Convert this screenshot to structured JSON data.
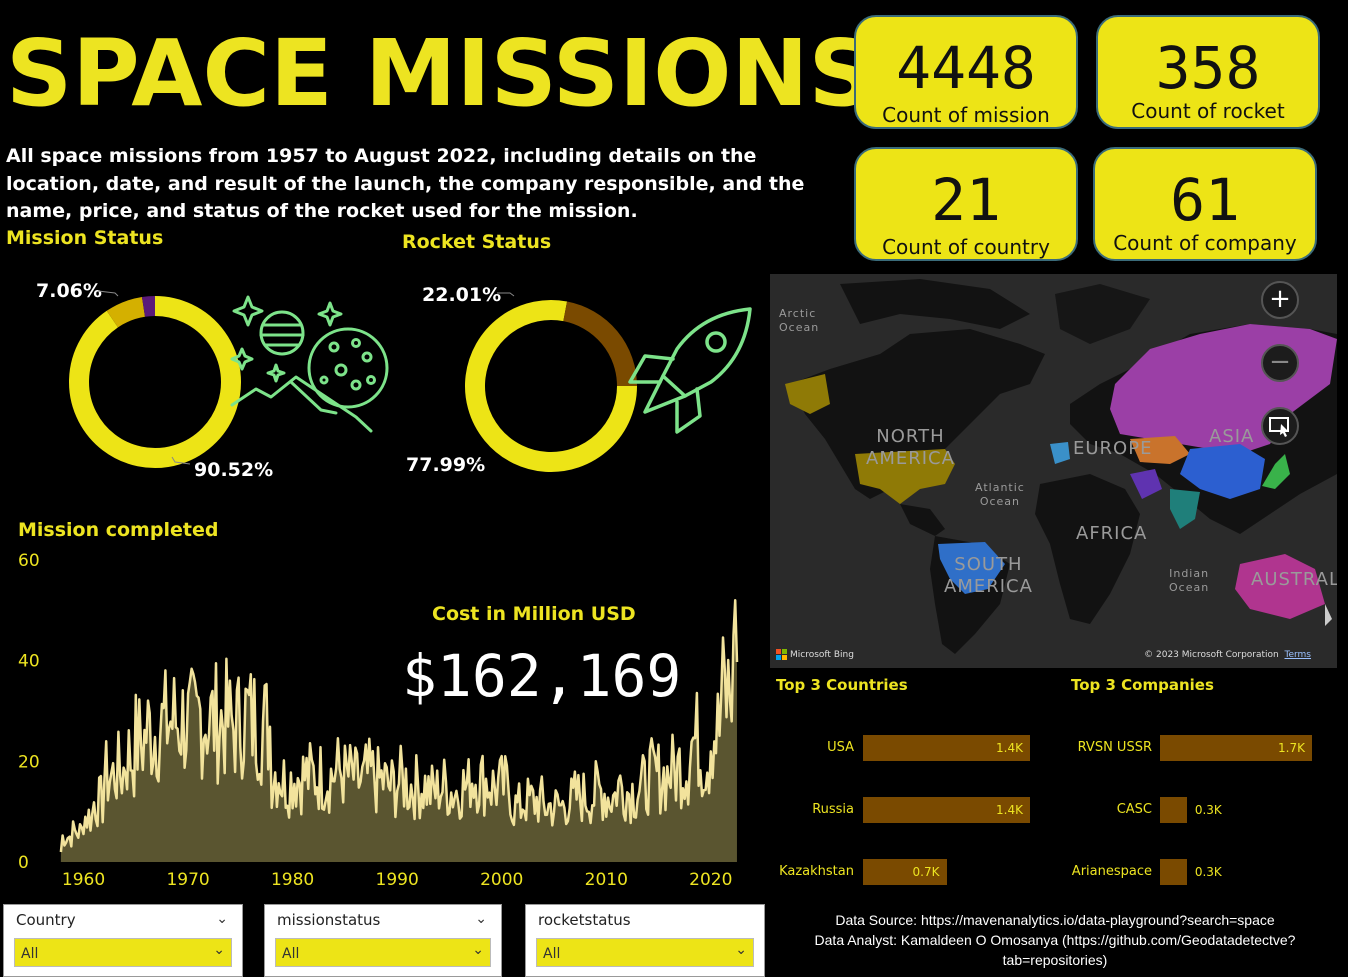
{
  "title": "SPACE MISSIONS",
  "description": "All space missions from 1957 to August 2022, including details on the location, date, and result of the launch, the company responsible, and the name, price, and status of the rocket used for the mission.",
  "kpis": [
    {
      "value": "4448",
      "label": "Count of mission"
    },
    {
      "value": "358",
      "label": "Count of rocket"
    },
    {
      "value": "21",
      "label": "Count of country"
    },
    {
      "value": "61",
      "label": "Count of company"
    }
  ],
  "mission_status": {
    "title": "Mission Status",
    "small_pct": "7.06%",
    "large_pct": "90.52%",
    "icon": "planets-neon-icon"
  },
  "rocket_status": {
    "title": "Rocket Status",
    "small_pct": "22.01%",
    "large_pct": "77.99%",
    "icon": "rocket-neon-icon"
  },
  "colors": {
    "accent": "#ede421",
    "bar": "#7a4a00",
    "area": "#5a5530",
    "line": "#f2e39c"
  },
  "cost": {
    "title": "Cost in Million USD",
    "value": "$162,169"
  },
  "map": {
    "labels": {
      "arctic": "Arctic\nOcean",
      "north_america": "NORTH\nAMERICA",
      "europe": "EUROPE",
      "asia": "ASIA",
      "atlantic": "Atlantic\nOcean",
      "africa": "AFRICA",
      "south_america": "SOUTH\nAMERICA",
      "indian": "Indian\nOcean",
      "australia": "AUSTRAL"
    },
    "bing": "Microsoft Bing",
    "copyright": "© 2023 Microsoft Corporation",
    "terms": "Terms",
    "zoom_in": "+",
    "zoom_out": "−"
  },
  "top_countries": {
    "title": "Top 3 Countries",
    "items": [
      {
        "label": "USA",
        "value": 1.4,
        "text": "1.4K"
      },
      {
        "label": "Russia",
        "value": 1.4,
        "text": "1.4K"
      },
      {
        "label": "Kazakhstan",
        "value": 0.7,
        "text": "0.7K"
      }
    ]
  },
  "top_companies": {
    "title": "Top 3 Companies",
    "items": [
      {
        "label": "RVSN USSR",
        "value": 1.7,
        "text": "1.7K"
      },
      {
        "label": "CASC",
        "value": 0.3,
        "text": "0.3K"
      },
      {
        "label": "Arianespace",
        "value": 0.3,
        "text": "0.3K"
      }
    ]
  },
  "slicers": [
    {
      "label": "Country",
      "value": "All"
    },
    {
      "label": "missionstatus",
      "value": "All"
    },
    {
      "label": "rocketstatus",
      "value": "All"
    }
  ],
  "footer": {
    "line1": "Data Source: https://mavenanalytics.io/data-playground?search=space",
    "line2": "Data Analyst: Kamaldeen O Omosanya (https://github.com/Geodatadetectve?",
    "line3": "tab=repositories)"
  },
  "chart_data": [
    {
      "type": "area",
      "title": "Mission completed",
      "ylim": [
        0,
        60
      ],
      "yticks": [
        "0",
        "20",
        "40",
        "60"
      ],
      "xticks": [
        "1960",
        "1970",
        "1980",
        "1990",
        "2000",
        "2010",
        "2020"
      ],
      "x_range": [
        "1957-10",
        "2022-08"
      ],
      "series": [
        {
          "values_yearly": [
            {
              "x": 1957,
              "y": 2
            },
            {
              "x": 1958,
              "y": 5
            },
            {
              "x": 1959,
              "y": 6
            },
            {
              "x": 1960,
              "y": 9
            },
            {
              "x": 1961,
              "y": 12
            },
            {
              "x": 1962,
              "y": 17
            },
            {
              "x": 1963,
              "y": 18
            },
            {
              "x": 1964,
              "y": 21
            },
            {
              "x": 1965,
              "y": 24
            },
            {
              "x": 1966,
              "y": 26
            },
            {
              "x": 1967,
              "y": 27
            },
            {
              "x": 1968,
              "y": 28
            },
            {
              "x": 1969,
              "y": 28
            },
            {
              "x": 1970,
              "y": 27
            },
            {
              "x": 1971,
              "y": 29
            },
            {
              "x": 1972,
              "y": 28
            },
            {
              "x": 1973,
              "y": 28
            },
            {
              "x": 1974,
              "y": 27
            },
            {
              "x": 1975,
              "y": 29
            },
            {
              "x": 1976,
              "y": 28
            },
            {
              "x": 1977,
              "y": 27
            },
            {
              "x": 1978,
              "y": 18
            },
            {
              "x": 1979,
              "y": 16
            },
            {
              "x": 1980,
              "y": 17
            },
            {
              "x": 1981,
              "y": 17
            },
            {
              "x": 1982,
              "y": 17
            },
            {
              "x": 1983,
              "y": 17
            },
            {
              "x": 1984,
              "y": 18
            },
            {
              "x": 1985,
              "y": 17
            },
            {
              "x": 1986,
              "y": 16
            },
            {
              "x": 1987,
              "y": 17
            },
            {
              "x": 1988,
              "y": 16
            },
            {
              "x": 1989,
              "y": 15
            },
            {
              "x": 1990,
              "y": 16
            },
            {
              "x": 1991,
              "y": 15
            },
            {
              "x": 1992,
              "y": 15
            },
            {
              "x": 1993,
              "y": 14
            },
            {
              "x": 1994,
              "y": 15
            },
            {
              "x": 1995,
              "y": 14
            },
            {
              "x": 1996,
              "y": 15
            },
            {
              "x": 1997,
              "y": 17
            },
            {
              "x": 1998,
              "y": 16
            },
            {
              "x": 1999,
              "y": 15
            },
            {
              "x": 2000,
              "y": 15
            },
            {
              "x": 2001,
              "y": 11
            },
            {
              "x": 2002,
              "y": 12
            },
            {
              "x": 2003,
              "y": 12
            },
            {
              "x": 2004,
              "y": 11
            },
            {
              "x": 2005,
              "y": 11
            },
            {
              "x": 2006,
              "y": 12
            },
            {
              "x": 2007,
              "y": 13
            },
            {
              "x": 2008,
              "y": 13
            },
            {
              "x": 2009,
              "y": 14
            },
            {
              "x": 2010,
              "y": 13
            },
            {
              "x": 2011,
              "y": 15
            },
            {
              "x": 2012,
              "y": 14
            },
            {
              "x": 2013,
              "y": 15
            },
            {
              "x": 2014,
              "y": 17
            },
            {
              "x": 2015,
              "y": 17
            },
            {
              "x": 2016,
              "y": 18
            },
            {
              "x": 2017,
              "y": 19
            },
            {
              "x": 2018,
              "y": 24
            },
            {
              "x": 2019,
              "y": 21
            },
            {
              "x": 2020,
              "y": 26
            },
            {
              "x": 2021,
              "y": 33
            },
            {
              "x": 2022,
              "y": 36
            }
          ]
        }
      ]
    },
    {
      "type": "pie",
      "title": "Mission Status",
      "values": [
        90.52,
        7.06,
        2.42
      ],
      "labels": [
        "90.52%",
        "7.06%",
        ""
      ],
      "colors": [
        "#ede416",
        "#d4b000",
        "#5a1a7a"
      ]
    },
    {
      "type": "pie",
      "title": "Rocket Status",
      "values": [
        77.99,
        22.01
      ],
      "labels": [
        "77.99%",
        "22.01%"
      ],
      "colors": [
        "#ede416",
        "#7a4a00"
      ]
    },
    {
      "type": "bar",
      "title": "Top 3 Countries",
      "categories": [
        "USA",
        "Russia",
        "Kazakhstan"
      ],
      "values": [
        1.4,
        1.4,
        0.7
      ]
    },
    {
      "type": "bar",
      "title": "Top 3 Companies",
      "categories": [
        "RVSN USSR",
        "CASC",
        "Arianespace"
      ],
      "values": [
        1.7,
        0.3,
        0.3
      ]
    }
  ]
}
